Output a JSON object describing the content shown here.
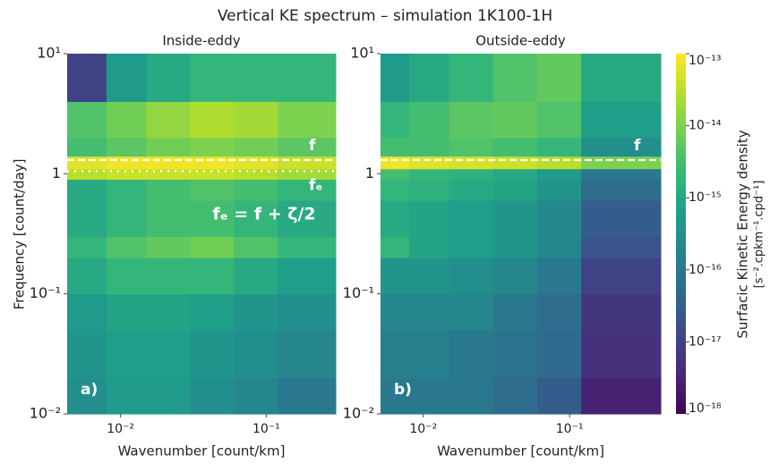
{
  "figure": {
    "title": "Vertical KE spectrum – simulation 1K100-1H"
  },
  "colorbar": {
    "label": "Surfacic Kinetic Energy density",
    "units": "[s⁻².cpkm⁻¹.cpd⁻¹]",
    "lim": [
      1e-18,
      1e-13
    ],
    "log": true,
    "colormap": "viridis",
    "ticks": [
      {
        "value": 1e-13,
        "label": "10⁻¹³"
      },
      {
        "value": 1e-14,
        "label": "10⁻¹⁴"
      },
      {
        "value": 1e-15,
        "label": "10⁻¹⁵"
      },
      {
        "value": 1e-16,
        "label": "10⁻¹⁶"
      },
      {
        "value": 1e-17,
        "label": "10⁻¹⁷"
      },
      {
        "value": 1e-18,
        "label": "10⁻¹⁸"
      }
    ]
  },
  "chart_data": [
    {
      "type": "heatmap",
      "title": "Inside-eddy",
      "panel_label": "a)",
      "xlabel": "Wavenumber [count/km]",
      "ylabel": "Frequency [count/day]",
      "xlog": true,
      "ylog": true,
      "xlim": [
        0.0043,
        0.3
      ],
      "ylim": [
        0.01,
        10
      ],
      "xticks": [
        {
          "value": 0.01,
          "label": "10⁻²"
        },
        {
          "value": 0.1,
          "label": "10⁻¹"
        }
      ],
      "yticks": [
        {
          "value": 0.01,
          "label": "10⁻²"
        },
        {
          "value": 0.1,
          "label": "10⁻¹"
        },
        1,
        {
          "value": 10,
          "label": "10¹"
        }
      ],
      "x_edges": [
        0.0043,
        0.008,
        0.015,
        0.03,
        0.06,
        0.12,
        0.3
      ],
      "y_edges": [
        0.01,
        0.02,
        0.05,
        0.1,
        0.2,
        0.3,
        0.6,
        0.9,
        1.1,
        1.4,
        2,
        4,
        10
      ],
      "z": [
        [
          3e-16,
          5e-16,
          5e-16,
          3e-16,
          2e-16,
          1e-16
        ],
        [
          4e-16,
          6e-16,
          6e-16,
          4e-16,
          3e-16,
          2e-16
        ],
        [
          5e-16,
          8e-16,
          8e-16,
          6e-16,
          4e-16,
          3e-16
        ],
        [
          1e-15,
          2e-15,
          2e-15,
          2e-15,
          1e-15,
          6e-16
        ],
        [
          2e-15,
          4e-15,
          6e-15,
          8e-15,
          4e-15,
          2e-15
        ],
        [
          1e-15,
          2e-15,
          3e-15,
          3e-15,
          2e-15,
          1e-15
        ],
        [
          1e-15,
          2e-15,
          3e-15,
          4e-15,
          3e-15,
          2e-15
        ],
        [
          3e-14,
          4e-14,
          4e-14,
          4e-14,
          3e-14,
          2e-14
        ],
        [
          6e-14,
          8e-14,
          8e-14,
          8e-14,
          6e-14,
          4e-14
        ],
        [
          3e-15,
          5e-15,
          8e-15,
          1e-14,
          8e-15,
          5e-15
        ],
        [
          4e-15,
          8e-15,
          1.5e-14,
          2.5e-14,
          2e-14,
          1e-14
        ],
        [
          1e-17,
          5e-16,
          1e-15,
          2e-15,
          2e-15,
          2e-15
        ]
      ],
      "annotations": [
        {
          "text": "f",
          "y": 1.3,
          "style": "dashed"
        },
        {
          "text": "fₑ",
          "y": 1.05,
          "style": "dotted"
        },
        {
          "text": "fₑ = f + ζ/2"
        }
      ]
    },
    {
      "type": "heatmap",
      "title": "Outside-eddy",
      "panel_label": "b)",
      "xlabel": "Wavenumber [count/km]",
      "xlog": true,
      "ylog": true,
      "xlim": [
        0.0051,
        0.42
      ],
      "ylim": [
        0.01,
        10
      ],
      "xticks": [
        {
          "value": 0.01,
          "label": "10⁻²"
        },
        {
          "value": 0.1,
          "label": "10⁻¹"
        }
      ],
      "yticks": [
        {
          "value": 0.01,
          "label": "10⁻²"
        },
        {
          "value": 0.1,
          "label": "10⁻¹"
        },
        1,
        {
          "value": 10,
          "label": "10¹"
        }
      ],
      "x_edges": [
        0.0051,
        0.008,
        0.015,
        0.03,
        0.06,
        0.12,
        0.42
      ],
      "y_edges": [
        0.01,
        0.02,
        0.05,
        0.1,
        0.2,
        0.3,
        0.6,
        0.9,
        1.1,
        1.4,
        2,
        4,
        10
      ],
      "z": [
        [
          1e-16,
          1e-16,
          1e-16,
          6e-17,
          3e-17,
          3e-18
        ],
        [
          1.5e-16,
          1.5e-16,
          1e-16,
          8e-17,
          5e-17,
          5e-18
        ],
        [
          2e-16,
          2e-16,
          2e-16,
          1e-16,
          6e-17,
          6e-18
        ],
        [
          4e-16,
          4e-16,
          3e-16,
          2e-16,
          1e-16,
          1e-17
        ],
        [
          2e-15,
          8e-16,
          6e-16,
          4e-16,
          2e-16,
          2e-17
        ],
        [
          1e-15,
          8e-16,
          6e-16,
          4e-16,
          2e-16,
          3e-17
        ],
        [
          2e-15,
          1.5e-15,
          1e-15,
          8e-16,
          4e-16,
          6e-17
        ],
        [
          3e-15,
          2e-15,
          1.5e-15,
          1e-15,
          5e-16,
          1e-16
        ],
        [
          8e-14,
          6e-14,
          5e-14,
          4e-14,
          3e-14,
          1e-14
        ],
        [
          3e-15,
          3e-15,
          4e-15,
          3e-15,
          2e-15,
          3e-16
        ],
        [
          2e-15,
          3e-15,
          5e-15,
          6e-15,
          4e-15,
          6e-16
        ],
        [
          5e-16,
          1e-15,
          2e-15,
          4e-15,
          6e-15,
          1e-15
        ]
      ],
      "annotations": [
        {
          "text": "f",
          "y": 1.3,
          "style": "dashed"
        }
      ]
    }
  ]
}
